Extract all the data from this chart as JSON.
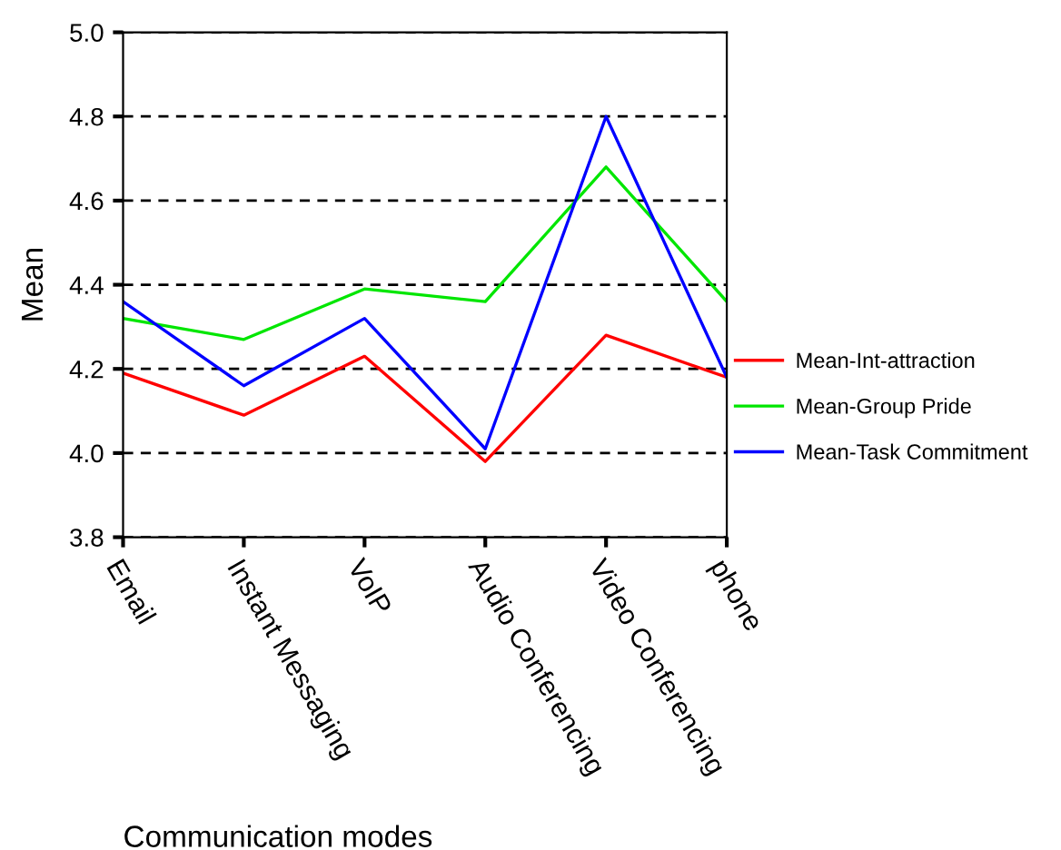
{
  "chart_data": {
    "type": "line",
    "xlabel": "Communication modes",
    "ylabel": "Mean",
    "categories": [
      "Email",
      "Instant Messaging",
      "VoIP",
      "Audio Conferencing",
      "Video Conferencing",
      "phone"
    ],
    "series": [
      {
        "name": "Mean-Int-attraction",
        "color": "#ff0000",
        "values": [
          4.19,
          4.09,
          4.23,
          3.98,
          4.28,
          4.18
        ]
      },
      {
        "name": "Mean-Group Pride",
        "color": "#00e600",
        "values": [
          4.32,
          4.27,
          4.39,
          4.36,
          4.68,
          4.36
        ]
      },
      {
        "name": "Mean-Task Commitment",
        "color": "#0000ff",
        "values": [
          4.36,
          4.16,
          4.32,
          4.01,
          4.8,
          4.18
        ]
      }
    ],
    "ylim": [
      3.8,
      5.0
    ],
    "yticks": [
      3.8,
      {
        "value": 4.0,
        "label": "4.0"
      },
      4.2,
      4.4,
      4.6,
      4.8,
      {
        "value": 5.0,
        "label": "5.0"
      }
    ],
    "grid": "y",
    "legend": "right",
    "marker": "none",
    "line_style": "solid"
  }
}
